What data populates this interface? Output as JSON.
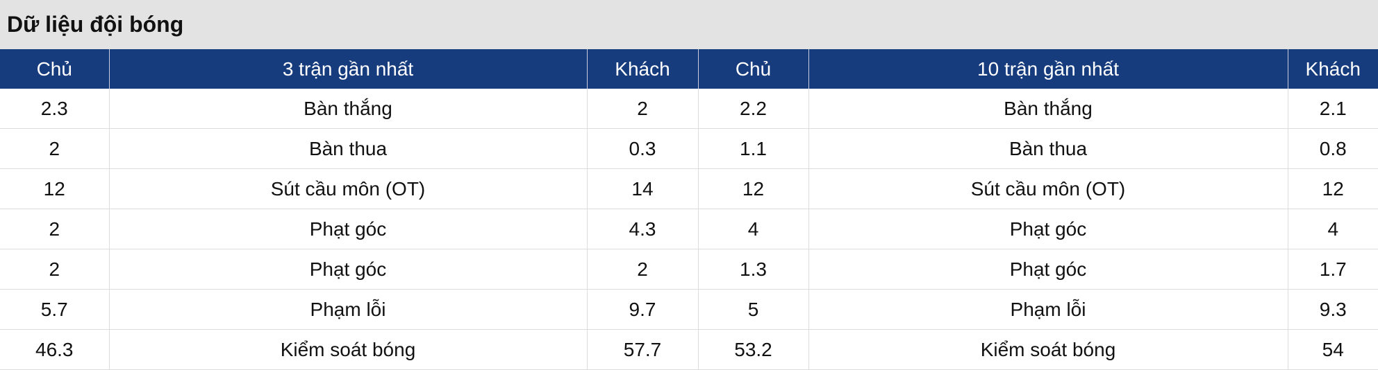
{
  "header": {
    "title": "Dữ liệu đội bóng"
  },
  "table": {
    "columns": [
      "Chủ",
      "3 trận gần nhất",
      "Khách",
      "Chủ",
      "10 trận gần nhất",
      "Khách"
    ],
    "rows": [
      [
        "2.3",
        "Bàn thắng",
        "2",
        "2.2",
        "Bàn thắng",
        "2.1"
      ],
      [
        "2",
        "Bàn thua",
        "0.3",
        "1.1",
        "Bàn thua",
        "0.8"
      ],
      [
        "12",
        "Sút cầu môn (OT)",
        "14",
        "12",
        "Sút cầu môn (OT)",
        "12"
      ],
      [
        "2",
        "Phạt góc",
        "4.3",
        "4",
        "Phạt góc",
        "4"
      ],
      [
        "2",
        "Phạt góc",
        "2",
        "1.3",
        "Phạt góc",
        "1.7"
      ],
      [
        "5.7",
        "Phạm lỗi",
        "9.7",
        "5",
        "Phạm lỗi",
        "9.3"
      ],
      [
        "46.3",
        "Kiểm soát bóng",
        "57.7",
        "53.2",
        "Kiểm soát bóng",
        "54"
      ]
    ]
  }
}
